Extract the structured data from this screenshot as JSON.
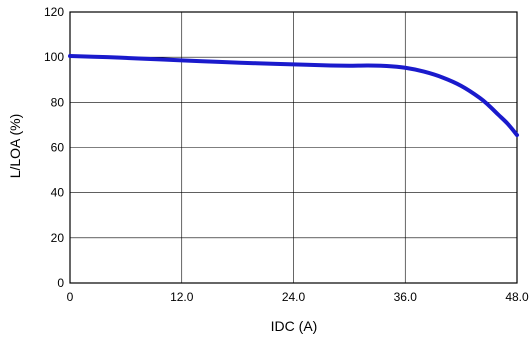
{
  "chart_data": {
    "type": "line",
    "xlabel": "IDC (A)",
    "ylabel": "L/LOA (%)",
    "xlim": [
      0,
      48
    ],
    "ylim": [
      0,
      120
    ],
    "x_ticks": [
      0,
      12,
      24,
      36,
      48
    ],
    "x_tick_labels": [
      "0",
      "12.0",
      "24.0",
      "36.0",
      "48.0"
    ],
    "y_ticks": [
      0,
      20,
      40,
      60,
      80,
      100,
      120
    ],
    "y_tick_labels": [
      "0",
      "20",
      "40",
      "60",
      "80",
      "100",
      "120"
    ],
    "grid": true,
    "series": [
      {
        "color": "#1a1acc",
        "x": [
          0,
          4,
          8,
          12,
          16,
          20,
          24,
          28,
          30,
          32,
          34,
          36,
          38,
          40,
          42,
          44,
          45,
          46,
          47,
          48
        ],
        "y": [
          100.5,
          100.0,
          99.3,
          98.6,
          97.9,
          97.3,
          96.8,
          96.3,
          96.2,
          96.3,
          96.1,
          95.3,
          93.6,
          91.0,
          87.3,
          82.0,
          78.5,
          74.5,
          70.5,
          65.5
        ]
      }
    ]
  }
}
